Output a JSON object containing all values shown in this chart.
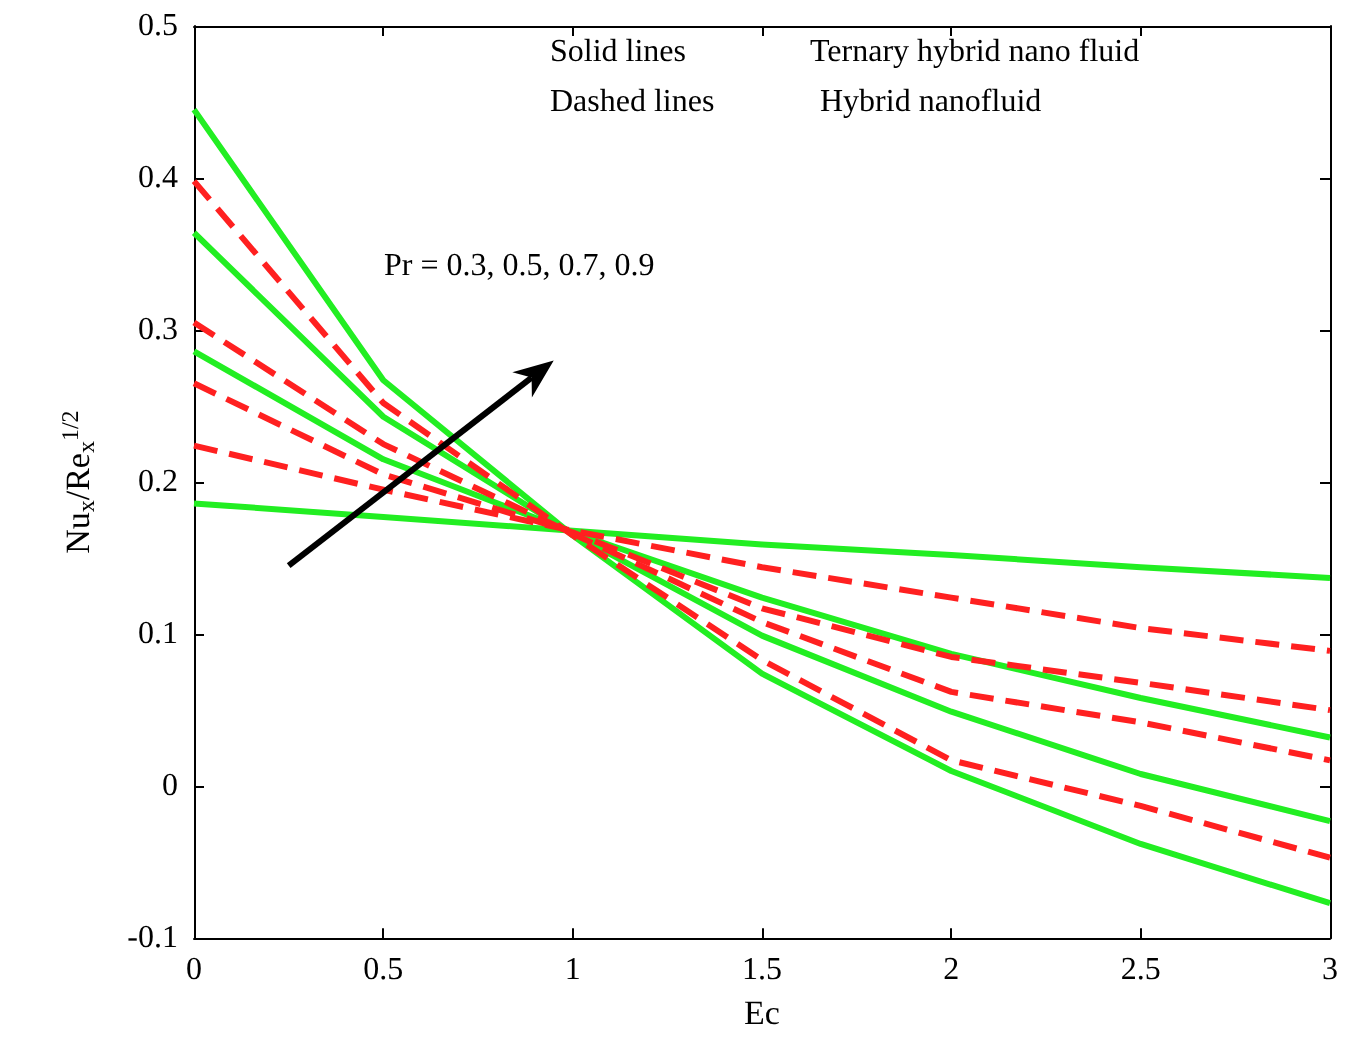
{
  "chart_data": {
    "type": "line",
    "xlabel": "Ec",
    "ylabel": "Nu$_{x}$/Re$_{x}$$^{1/2}$",
    "x": [
      0,
      0.5,
      1,
      1.5,
      2,
      2.5,
      3
    ],
    "xlim": [
      0,
      3
    ],
    "xticks": [
      0,
      0.5,
      1,
      1.5,
      2,
      2.5,
      3
    ],
    "ylim": [
      -0.1,
      0.5
    ],
    "yticks": [
      -0.1,
      0,
      0.1,
      0.2,
      0.3,
      0.4,
      0.5
    ],
    "grid": false,
    "marker": "none",
    "annotations": [
      "Solid lines",
      "Ternary hybrid nano fluid",
      "Dashed lines",
      "Hybrid nanofluid",
      "Pr = 0.3, 0.5, 0.7, 0.9"
    ],
    "series": [
      {
        "color": "#22ee22",
        "line_style": "solid",
        "values": [
          0.186,
          0.177,
          0.168,
          0.159,
          0.152,
          0.144,
          0.137
        ]
      },
      {
        "color": "#22ee22",
        "line_style": "solid",
        "values": [
          0.286,
          0.215,
          0.167,
          0.124,
          0.087,
          0.058,
          0.032
        ]
      },
      {
        "color": "#22ee22",
        "line_style": "solid",
        "values": [
          0.364,
          0.243,
          0.166,
          0.099,
          0.049,
          0.008,
          -0.023
        ]
      },
      {
        "color": "#22ee22",
        "line_style": "solid",
        "values": [
          0.445,
          0.267,
          0.165,
          0.074,
          0.01,
          -0.038,
          -0.077
        ]
      },
      {
        "color": "#ff2020",
        "line_style": "dashed",
        "values": [
          0.224,
          0.195,
          0.168,
          0.144,
          0.124,
          0.104,
          0.089
        ]
      },
      {
        "color": "#ff2020",
        "line_style": "dashed",
        "values": [
          0.265,
          0.205,
          0.167,
          0.117,
          0.085,
          0.068,
          0.05
        ]
      },
      {
        "color": "#ff2020",
        "line_style": "dashed",
        "values": [
          0.305,
          0.225,
          0.166,
          0.108,
          0.062,
          0.042,
          0.017
        ]
      },
      {
        "color": "#ff2020",
        "line_style": "dashed",
        "values": [
          0.398,
          0.252,
          0.165,
          0.083,
          0.017,
          -0.013,
          -0.047
        ]
      }
    ]
  }
}
